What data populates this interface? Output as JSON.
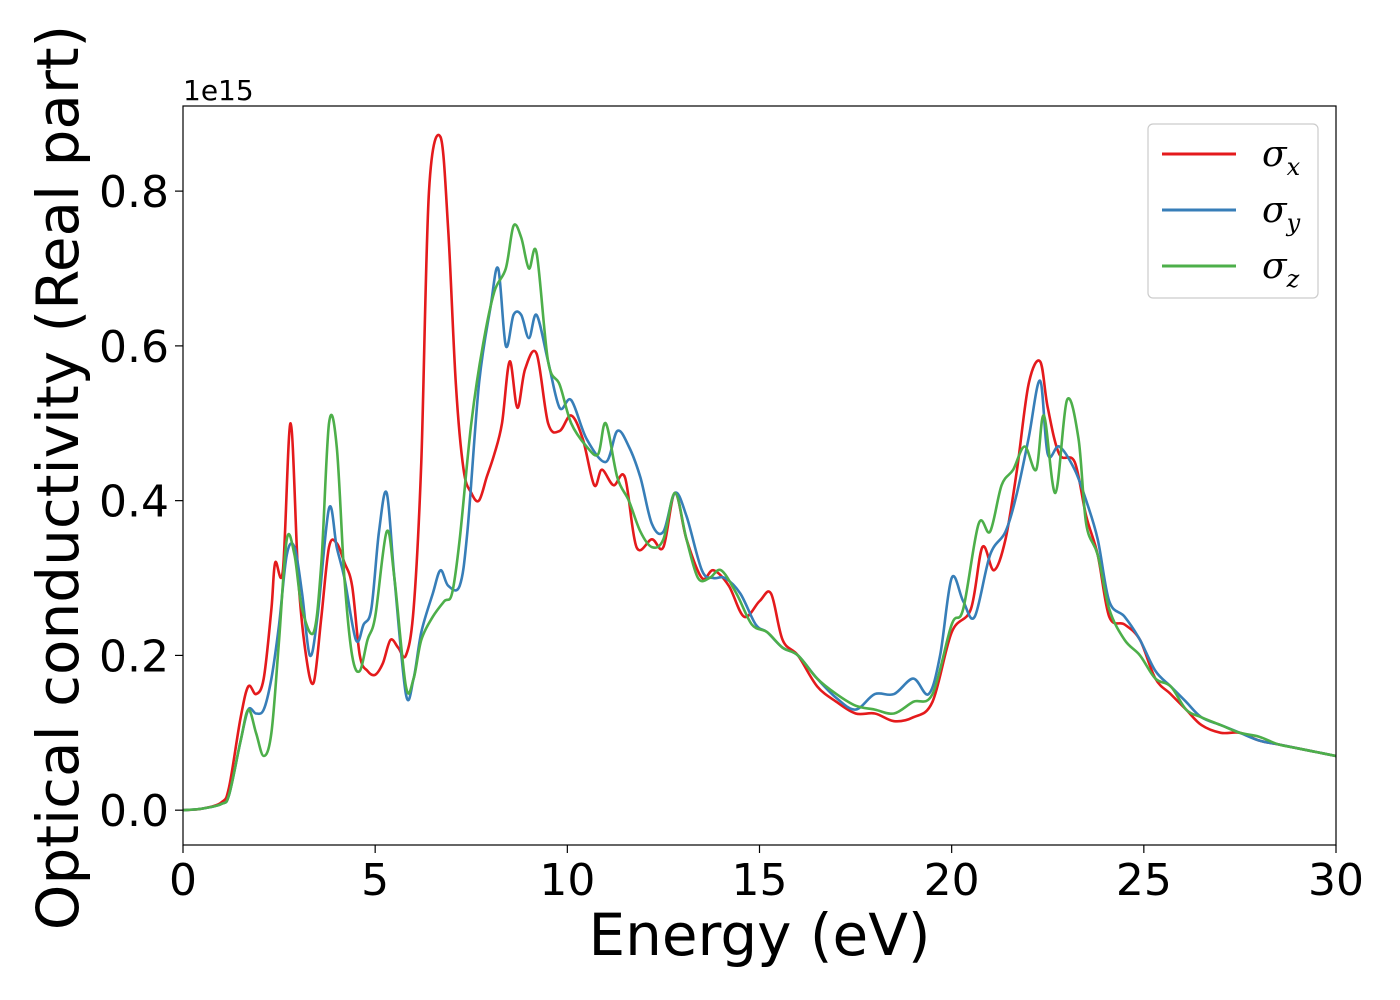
{
  "chart_data": {
    "type": "line",
    "title": "",
    "xlabel": "Energy (eV)",
    "ylabel": "Optical conductivity (Real part)",
    "y_offset_label": "1e15",
    "xlim": [
      0,
      30
    ],
    "ylim": [
      -0.045,
      0.91
    ],
    "x_ticks": [
      0,
      5,
      10,
      15,
      20,
      25,
      30
    ],
    "x_tick_labels": [
      "0",
      "5",
      "10",
      "15",
      "20",
      "25",
      "30"
    ],
    "y_ticks": [
      0.0,
      0.2,
      0.4,
      0.6,
      0.8
    ],
    "y_tick_labels": [
      "0.0",
      "0.2",
      "0.4",
      "0.6",
      "0.8"
    ],
    "grid": false,
    "legend_position": "top-right",
    "series": [
      {
        "name": "σx",
        "symbol": "σ",
        "subscript": "x",
        "color": "#e41a1c",
        "points": [
          [
            0,
            0
          ],
          [
            0.5,
            0.002
          ],
          [
            1,
            0.01
          ],
          [
            1.2,
            0.03
          ],
          [
            1.5,
            0.12
          ],
          [
            1.7,
            0.16
          ],
          [
            1.9,
            0.15
          ],
          [
            2.1,
            0.17
          ],
          [
            2.3,
            0.26
          ],
          [
            2.4,
            0.32
          ],
          [
            2.6,
            0.31
          ],
          [
            2.8,
            0.5
          ],
          [
            3.0,
            0.3
          ],
          [
            3.2,
            0.2
          ],
          [
            3.4,
            0.165
          ],
          [
            3.6,
            0.25
          ],
          [
            3.8,
            0.34
          ],
          [
            4.0,
            0.345
          ],
          [
            4.2,
            0.32
          ],
          [
            4.4,
            0.29
          ],
          [
            4.6,
            0.2
          ],
          [
            4.8,
            0.18
          ],
          [
            5.0,
            0.175
          ],
          [
            5.2,
            0.19
          ],
          [
            5.4,
            0.22
          ],
          [
            5.6,
            0.21
          ],
          [
            5.8,
            0.2
          ],
          [
            6.0,
            0.26
          ],
          [
            6.2,
            0.45
          ],
          [
            6.4,
            0.8
          ],
          [
            6.7,
            0.87
          ],
          [
            6.9,
            0.75
          ],
          [
            7.1,
            0.55
          ],
          [
            7.3,
            0.44
          ],
          [
            7.5,
            0.41
          ],
          [
            7.7,
            0.4
          ],
          [
            7.9,
            0.43
          ],
          [
            8.1,
            0.46
          ],
          [
            8.3,
            0.5
          ],
          [
            8.5,
            0.58
          ],
          [
            8.7,
            0.52
          ],
          [
            8.9,
            0.57
          ],
          [
            9.2,
            0.59
          ],
          [
            9.5,
            0.5
          ],
          [
            9.8,
            0.49
          ],
          [
            10.1,
            0.51
          ],
          [
            10.4,
            0.48
          ],
          [
            10.7,
            0.42
          ],
          [
            10.9,
            0.44
          ],
          [
            11.2,
            0.42
          ],
          [
            11.5,
            0.43
          ],
          [
            11.8,
            0.34
          ],
          [
            12.2,
            0.35
          ],
          [
            12.5,
            0.34
          ],
          [
            12.8,
            0.41
          ],
          [
            13.1,
            0.35
          ],
          [
            13.5,
            0.3
          ],
          [
            13.8,
            0.31
          ],
          [
            14.2,
            0.29
          ],
          [
            14.6,
            0.25
          ],
          [
            15.0,
            0.27
          ],
          [
            15.3,
            0.28
          ],
          [
            15.6,
            0.22
          ],
          [
            16.0,
            0.2
          ],
          [
            16.5,
            0.16
          ],
          [
            17.0,
            0.14
          ],
          [
            17.5,
            0.125
          ],
          [
            18.0,
            0.125
          ],
          [
            18.5,
            0.115
          ],
          [
            19.0,
            0.12
          ],
          [
            19.5,
            0.14
          ],
          [
            20.0,
            0.23
          ],
          [
            20.5,
            0.26
          ],
          [
            20.8,
            0.34
          ],
          [
            21.1,
            0.31
          ],
          [
            21.4,
            0.35
          ],
          [
            21.7,
            0.44
          ],
          [
            22.0,
            0.55
          ],
          [
            22.3,
            0.58
          ],
          [
            22.5,
            0.52
          ],
          [
            22.8,
            0.46
          ],
          [
            23.2,
            0.45
          ],
          [
            23.5,
            0.38
          ],
          [
            23.8,
            0.33
          ],
          [
            24.1,
            0.25
          ],
          [
            24.5,
            0.24
          ],
          [
            24.9,
            0.22
          ],
          [
            25.3,
            0.17
          ],
          [
            25.7,
            0.15
          ],
          [
            26.1,
            0.13
          ],
          [
            26.5,
            0.11
          ],
          [
            27.0,
            0.1
          ],
          [
            27.5,
            0.1
          ],
          [
            28.0,
            0.09
          ],
          [
            28.5,
            0.085
          ],
          [
            29.0,
            0.08
          ],
          [
            29.5,
            0.075
          ],
          [
            30.0,
            0.07
          ]
        ]
      },
      {
        "name": "σy",
        "symbol": "σ",
        "subscript": "y",
        "color": "#377eb8",
        "points": [
          [
            0,
            0
          ],
          [
            0.5,
            0.002
          ],
          [
            1,
            0.008
          ],
          [
            1.2,
            0.02
          ],
          [
            1.5,
            0.09
          ],
          [
            1.7,
            0.13
          ],
          [
            1.9,
            0.125
          ],
          [
            2.1,
            0.13
          ],
          [
            2.3,
            0.17
          ],
          [
            2.5,
            0.24
          ],
          [
            2.7,
            0.33
          ],
          [
            2.9,
            0.34
          ],
          [
            3.1,
            0.28
          ],
          [
            3.3,
            0.2
          ],
          [
            3.5,
            0.25
          ],
          [
            3.8,
            0.39
          ],
          [
            4.0,
            0.34
          ],
          [
            4.2,
            0.3
          ],
          [
            4.5,
            0.22
          ],
          [
            4.7,
            0.24
          ],
          [
            4.9,
            0.26
          ],
          [
            5.1,
            0.36
          ],
          [
            5.3,
            0.41
          ],
          [
            5.5,
            0.3
          ],
          [
            5.8,
            0.15
          ],
          [
            6.0,
            0.17
          ],
          [
            6.2,
            0.23
          ],
          [
            6.5,
            0.28
          ],
          [
            6.7,
            0.31
          ],
          [
            6.9,
            0.29
          ],
          [
            7.2,
            0.29
          ],
          [
            7.4,
            0.36
          ],
          [
            7.7,
            0.55
          ],
          [
            8.0,
            0.65
          ],
          [
            8.2,
            0.7
          ],
          [
            8.4,
            0.6
          ],
          [
            8.6,
            0.64
          ],
          [
            8.8,
            0.64
          ],
          [
            9.0,
            0.61
          ],
          [
            9.2,
            0.64
          ],
          [
            9.5,
            0.58
          ],
          [
            9.8,
            0.52
          ],
          [
            10.1,
            0.53
          ],
          [
            10.5,
            0.48
          ],
          [
            11.0,
            0.45
          ],
          [
            11.3,
            0.49
          ],
          [
            11.6,
            0.47
          ],
          [
            11.9,
            0.43
          ],
          [
            12.2,
            0.37
          ],
          [
            12.5,
            0.36
          ],
          [
            12.8,
            0.41
          ],
          [
            13.1,
            0.38
          ],
          [
            13.5,
            0.31
          ],
          [
            13.8,
            0.3
          ],
          [
            14.1,
            0.3
          ],
          [
            14.5,
            0.28
          ],
          [
            14.9,
            0.24
          ],
          [
            15.2,
            0.23
          ],
          [
            15.6,
            0.21
          ],
          [
            16.0,
            0.2
          ],
          [
            16.5,
            0.17
          ],
          [
            17.0,
            0.145
          ],
          [
            17.5,
            0.13
          ],
          [
            18.0,
            0.15
          ],
          [
            18.5,
            0.15
          ],
          [
            19.0,
            0.17
          ],
          [
            19.4,
            0.15
          ],
          [
            19.7,
            0.2
          ],
          [
            20.0,
            0.3
          ],
          [
            20.3,
            0.27
          ],
          [
            20.6,
            0.25
          ],
          [
            21.0,
            0.33
          ],
          [
            21.4,
            0.36
          ],
          [
            21.7,
            0.41
          ],
          [
            22.0,
            0.48
          ],
          [
            22.3,
            0.555
          ],
          [
            22.5,
            0.46
          ],
          [
            22.8,
            0.47
          ],
          [
            23.2,
            0.44
          ],
          [
            23.5,
            0.4
          ],
          [
            23.8,
            0.35
          ],
          [
            24.1,
            0.27
          ],
          [
            24.5,
            0.25
          ],
          [
            24.9,
            0.22
          ],
          [
            25.3,
            0.18
          ],
          [
            25.7,
            0.16
          ],
          [
            26.1,
            0.14
          ],
          [
            26.5,
            0.12
          ],
          [
            27.0,
            0.11
          ],
          [
            27.5,
            0.1
          ],
          [
            28.0,
            0.09
          ],
          [
            28.5,
            0.085
          ],
          [
            29.0,
            0.08
          ],
          [
            29.5,
            0.075
          ],
          [
            30.0,
            0.07
          ]
        ]
      },
      {
        "name": "σz",
        "symbol": "σ",
        "subscript": "z",
        "color": "#4daf4a",
        "points": [
          [
            0,
            0
          ],
          [
            0.5,
            0.002
          ],
          [
            1,
            0.008
          ],
          [
            1.2,
            0.02
          ],
          [
            1.5,
            0.09
          ],
          [
            1.7,
            0.13
          ],
          [
            1.9,
            0.1
          ],
          [
            2.1,
            0.07
          ],
          [
            2.3,
            0.1
          ],
          [
            2.5,
            0.22
          ],
          [
            2.7,
            0.35
          ],
          [
            2.9,
            0.33
          ],
          [
            3.1,
            0.26
          ],
          [
            3.4,
            0.23
          ],
          [
            3.6,
            0.32
          ],
          [
            3.8,
            0.5
          ],
          [
            4.0,
            0.47
          ],
          [
            4.2,
            0.3
          ],
          [
            4.4,
            0.2
          ],
          [
            4.6,
            0.18
          ],
          [
            4.8,
            0.22
          ],
          [
            5.0,
            0.25
          ],
          [
            5.3,
            0.36
          ],
          [
            5.5,
            0.3
          ],
          [
            5.8,
            0.16
          ],
          [
            6.0,
            0.17
          ],
          [
            6.2,
            0.22
          ],
          [
            6.5,
            0.25
          ],
          [
            6.8,
            0.27
          ],
          [
            7.0,
            0.28
          ],
          [
            7.2,
            0.35
          ],
          [
            7.5,
            0.5
          ],
          [
            7.8,
            0.6
          ],
          [
            8.1,
            0.67
          ],
          [
            8.4,
            0.7
          ],
          [
            8.6,
            0.755
          ],
          [
            8.8,
            0.74
          ],
          [
            9.0,
            0.7
          ],
          [
            9.2,
            0.72
          ],
          [
            9.5,
            0.58
          ],
          [
            9.8,
            0.55
          ],
          [
            10.1,
            0.5
          ],
          [
            10.5,
            0.47
          ],
          [
            10.8,
            0.46
          ],
          [
            11.0,
            0.5
          ],
          [
            11.3,
            0.43
          ],
          [
            11.6,
            0.4
          ],
          [
            11.9,
            0.36
          ],
          [
            12.2,
            0.34
          ],
          [
            12.5,
            0.35
          ],
          [
            12.8,
            0.41
          ],
          [
            13.1,
            0.35
          ],
          [
            13.4,
            0.3
          ],
          [
            13.7,
            0.3
          ],
          [
            14.0,
            0.31
          ],
          [
            14.4,
            0.28
          ],
          [
            14.8,
            0.24
          ],
          [
            15.2,
            0.23
          ],
          [
            15.6,
            0.21
          ],
          [
            16.0,
            0.2
          ],
          [
            16.5,
            0.17
          ],
          [
            17.0,
            0.15
          ],
          [
            17.5,
            0.135
          ],
          [
            18.0,
            0.13
          ],
          [
            18.5,
            0.125
          ],
          [
            19.0,
            0.14
          ],
          [
            19.5,
            0.15
          ],
          [
            20.0,
            0.24
          ],
          [
            20.3,
            0.26
          ],
          [
            20.7,
            0.37
          ],
          [
            21.0,
            0.36
          ],
          [
            21.3,
            0.42
          ],
          [
            21.6,
            0.44
          ],
          [
            21.9,
            0.47
          ],
          [
            22.2,
            0.44
          ],
          [
            22.4,
            0.51
          ],
          [
            22.7,
            0.41
          ],
          [
            23.0,
            0.53
          ],
          [
            23.3,
            0.48
          ],
          [
            23.5,
            0.37
          ],
          [
            23.8,
            0.33
          ],
          [
            24.1,
            0.26
          ],
          [
            24.5,
            0.22
          ],
          [
            24.9,
            0.2
          ],
          [
            25.3,
            0.17
          ],
          [
            25.7,
            0.16
          ],
          [
            26.1,
            0.13
          ],
          [
            26.5,
            0.12
          ],
          [
            27.0,
            0.11
          ],
          [
            27.5,
            0.1
          ],
          [
            28.0,
            0.095
          ],
          [
            28.5,
            0.085
          ],
          [
            29.0,
            0.08
          ],
          [
            29.5,
            0.075
          ],
          [
            30.0,
            0.07
          ]
        ]
      }
    ]
  }
}
